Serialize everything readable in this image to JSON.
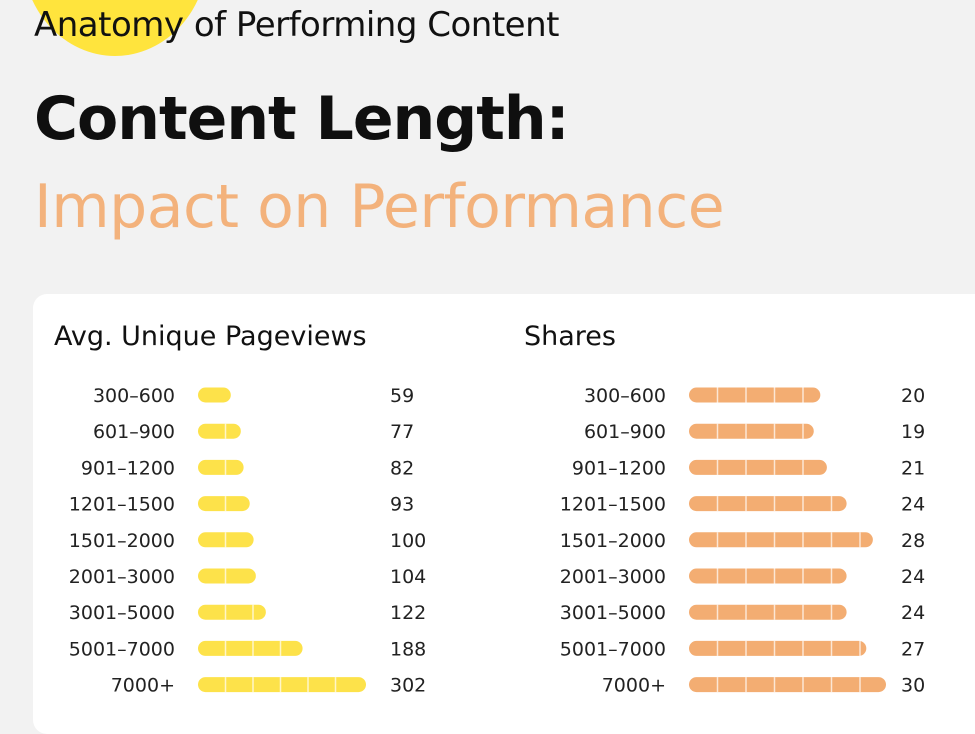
{
  "header": {
    "kicker": "Anatomy of Performing Content",
    "title_line1": "Content Length:",
    "title_line2": "Impact on Performance"
  },
  "colors": {
    "background": "#f2f2f2",
    "circle": "#ffe43d",
    "pageviews_bar": "#fde24a",
    "shares_bar": "#f3ad72",
    "highlight": "#f3b27c"
  },
  "chart_data": [
    {
      "type": "bar",
      "orientation": "horizontal",
      "title": "Avg. Unique Pageviews",
      "categories": [
        "300–600",
        "601–900",
        "901–1200",
        "1201–1500",
        "1501–2000",
        "2001–3000",
        "3001–5000",
        "5001–7000",
        "7000+"
      ],
      "values": [
        59,
        77,
        82,
        93,
        100,
        104,
        122,
        188,
        302
      ],
      "xlim": [
        0,
        302
      ],
      "color": "#fde24a",
      "grid": false
    },
    {
      "type": "bar",
      "orientation": "horizontal",
      "title": "Shares",
      "categories": [
        "300–600",
        "601–900",
        "901–1200",
        "1201–1500",
        "1501–2000",
        "2001–3000",
        "3001–5000",
        "5001–7000",
        "7000+"
      ],
      "values": [
        20,
        19,
        21,
        24,
        28,
        24,
        24,
        27,
        30
      ],
      "xlim": [
        0,
        30
      ],
      "color": "#f3ad72",
      "grid": false
    }
  ]
}
